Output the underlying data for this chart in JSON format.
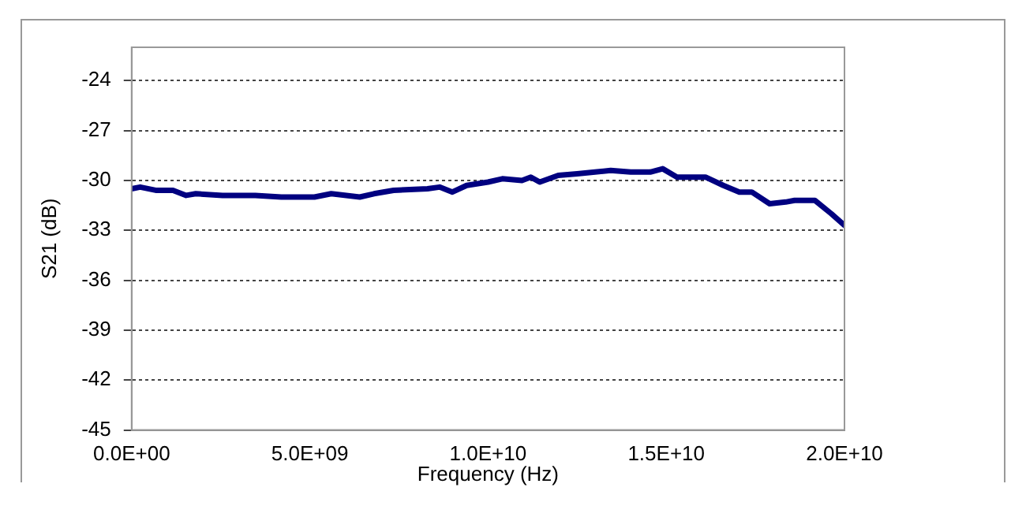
{
  "chart_data": {
    "type": "line",
    "xlabel": "Frequency (Hz)",
    "ylabel": "S21 (dB)",
    "x": [
      0,
      240000000.0,
      700000000.0,
      1160000000.0,
      1530000000.0,
      1800000000.0,
      2550000000.0,
      3470000000.0,
      4200000000.0,
      5130000000.0,
      5600000000.0,
      6400000000.0,
      6800000000.0,
      7350000000.0,
      8300000000.0,
      8640000000.0,
      9000000000.0,
      9400000000.0,
      10000000000.0,
      10400000000.0,
      10950000000.0,
      11200000000.0,
      11450000000.0,
      11970000000.0,
      12500000000.0,
      13000000000.0,
      13440000000.0,
      14000000000.0,
      14550000000.0,
      14900000000.0,
      15300000000.0,
      16100000000.0,
      16600000000.0,
      17050000000.0,
      17400000000.0,
      17900000000.0,
      18350000000.0,
      18600000000.0,
      19170000000.0,
      19630000000.0,
      20000000000.0
    ],
    "series": [
      {
        "color": "#000080",
        "values": [
          -30.5,
          -30.4,
          -30.6,
          -30.6,
          -30.9,
          -30.8,
          -30.9,
          -30.9,
          -31.0,
          -31.0,
          -30.8,
          -31.0,
          -30.8,
          -30.6,
          -30.5,
          -30.4,
          -30.7,
          -30.3,
          -30.1,
          -29.9,
          -30.0,
          -29.8,
          -30.1,
          -29.7,
          -29.6,
          -29.5,
          -29.4,
          -29.5,
          -29.5,
          -29.3,
          -29.8,
          -29.8,
          -30.3,
          -30.7,
          -30.7,
          -31.4,
          -31.3,
          -31.2,
          -31.2,
          -32.0,
          -32.7
        ]
      }
    ],
    "xlim": [
      0,
      20000000000.0
    ],
    "xticks": [
      {
        "value": 0,
        "label": "0.0E+00"
      },
      {
        "value": 5000000000.0,
        "label": "5.0E+09"
      },
      {
        "value": 10000000000.0,
        "label": "1.0E+10"
      },
      {
        "value": 15000000000.0,
        "label": "1.5E+10"
      },
      {
        "value": 20000000000.0,
        "label": "2.0E+10"
      }
    ],
    "ylim": [
      -45,
      -22
    ],
    "yticks": [
      -45,
      -42,
      -39,
      -36,
      -33,
      -30,
      -27,
      -24
    ],
    "grid": "y",
    "legend": false,
    "marker": "none",
    "line_style": "solid"
  }
}
